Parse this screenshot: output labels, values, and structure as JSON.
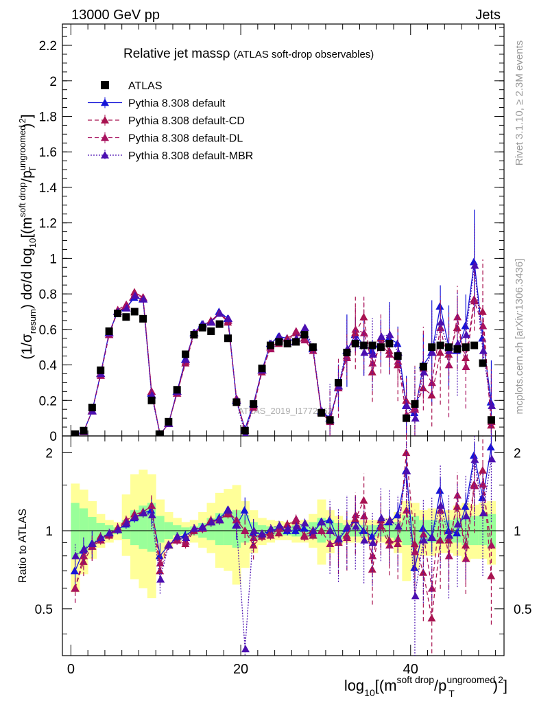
{
  "header": {
    "left": "13000 GeV pp",
    "right": "Jets"
  },
  "side_text": {
    "upper": "Rivet 3.1.10, ≥ 2.3M events",
    "lower": "mcplots.cern.ch [arXiv:1306.3436]"
  },
  "watermark": "ATLAS_2019_I1772062",
  "colors": {
    "atlas": "#000000",
    "default": "#1515d8",
    "cd": "#a8124f",
    "dl": "#a8125f",
    "mbr": "#4b0fb0",
    "band_outer": "#ffff99",
    "band_inner": "#99ff99"
  },
  "chart_data": [
    {
      "type": "line",
      "title": "Relative jet massρ",
      "title_note": "(ATLAS soft-drop observables)",
      "ylabel": {
        "pre": "(1/σ",
        "sub1": "resum",
        "mid": ") dσ/d log",
        "sub2": "10",
        "post1": "[(m",
        "sup1": "soft drop",
        "post2": "/p",
        "sup2": "ungroomed",
        "sub3": "T",
        "post3": ")",
        "sup3": "2",
        "post4": "]"
      },
      "xlim": [
        -1,
        51
      ],
      "ylim": [
        0,
        2.32
      ],
      "yticks": [
        0,
        0.2,
        0.4,
        0.6,
        0.8,
        1,
        1.2,
        1.4,
        1.6,
        1.8,
        2,
        2.2
      ],
      "ytick_labels": [
        "0",
        "0.2",
        "0.4",
        "0.6",
        "0.8",
        "1",
        "1.2",
        "1.4",
        "1.6",
        "1.8",
        "2",
        "2.2"
      ],
      "legend": [
        "ATLAS",
        "Pythia 8.308 default",
        "Pythia 8.308 default-CD",
        "Pythia 8.308 default-DL",
        "Pythia 8.308 default-MBR"
      ],
      "x": [
        0.5,
        1.5,
        2.5,
        3.5,
        4.5,
        5.5,
        6.5,
        7.5,
        8.5,
        9.5,
        10.5,
        11.5,
        12.5,
        13.5,
        14.5,
        15.5,
        16.5,
        17.5,
        18.5,
        19.5,
        20.5,
        21.5,
        22.5,
        23.5,
        24.5,
        25.5,
        26.5,
        27.5,
        28.5,
        29.5,
        30.5,
        31.5,
        32.5,
        33.5,
        34.5,
        35.5,
        36.5,
        37.5,
        38.5,
        39.5,
        40.5,
        41.5,
        42.5,
        43.5,
        44.5,
        45.5,
        46.5,
        47.5,
        48.5,
        49.5
      ],
      "series": [
        {
          "name": "ATLAS",
          "values": [
            0.01,
            0.03,
            0.16,
            0.37,
            0.59,
            0.69,
            0.67,
            0.7,
            0.66,
            0.2,
            0.01,
            0.08,
            0.26,
            0.46,
            0.57,
            0.61,
            0.59,
            0.63,
            0.55,
            0.19,
            0.03,
            0.18,
            0.38,
            0.51,
            0.53,
            0.52,
            0.53,
            0.57,
            0.5,
            0.13,
            0.09,
            0.3,
            0.47,
            0.52,
            0.51,
            0.51,
            0.5,
            0.52,
            0.45,
            0.1,
            0.18,
            0.39,
            0.5,
            0.51,
            0.5,
            0.49,
            0.5,
            0.51,
            0.41,
            0.09
          ]
        },
        {
          "name": "Pythia 8.308 default",
          "values": [
            0.007,
            0.025,
            0.14,
            0.35,
            0.58,
            0.7,
            0.72,
            0.78,
            0.77,
            0.24,
            0.008,
            0.07,
            0.25,
            0.43,
            0.58,
            0.63,
            0.64,
            0.7,
            0.66,
            0.2,
            0.04,
            0.18,
            0.37,
            0.52,
            0.56,
            0.55,
            0.53,
            0.58,
            0.49,
            0.14,
            0.1,
            0.27,
            0.48,
            0.57,
            0.51,
            0.48,
            0.52,
            0.55,
            0.52,
            0.17,
            0.13,
            0.4,
            0.47,
            0.73,
            0.5,
            0.48,
            0.62,
            0.98,
            0.55,
            0.19
          ]
        },
        {
          "name": "Pythia 8.308 default-CD",
          "values": [
            0.006,
            0.023,
            0.14,
            0.35,
            0.57,
            0.7,
            0.73,
            0.81,
            0.78,
            0.25,
            0.007,
            0.07,
            0.24,
            0.41,
            0.57,
            0.62,
            0.65,
            0.69,
            0.64,
            0.21,
            0.03,
            0.16,
            0.36,
            0.5,
            0.52,
            0.55,
            0.58,
            0.55,
            0.5,
            0.13,
            0.09,
            0.28,
            0.45,
            0.58,
            0.67,
            0.36,
            0.55,
            0.48,
            0.4,
            0.2,
            0.16,
            0.27,
            0.23,
            0.47,
            0.46,
            0.61,
            0.44,
            0.77,
            0.7,
            0.06
          ]
        },
        {
          "name": "Pythia 8.308 default-DL",
          "values": [
            0.006,
            0.024,
            0.14,
            0.34,
            0.57,
            0.71,
            0.74,
            0.8,
            0.78,
            0.25,
            0.008,
            0.07,
            0.24,
            0.42,
            0.58,
            0.62,
            0.64,
            0.69,
            0.65,
            0.21,
            0.03,
            0.17,
            0.37,
            0.49,
            0.54,
            0.53,
            0.59,
            0.54,
            0.48,
            0.13,
            0.08,
            0.27,
            0.44,
            0.6,
            0.58,
            0.41,
            0.52,
            0.46,
            0.42,
            0.12,
            0.15,
            0.38,
            0.3,
            0.61,
            0.4,
            0.67,
            0.39,
            0.76,
            0.62,
            0.08
          ]
        },
        {
          "name": "Pythia 8.308 default-MBR",
          "values": [
            0.008,
            0.025,
            0.14,
            0.35,
            0.58,
            0.7,
            0.72,
            0.79,
            0.77,
            0.23,
            0.009,
            0.07,
            0.25,
            0.43,
            0.58,
            0.63,
            0.64,
            0.69,
            0.66,
            0.2,
            0.01,
            0.18,
            0.37,
            0.52,
            0.56,
            0.53,
            0.55,
            0.61,
            0.5,
            0.14,
            0.09,
            0.28,
            0.49,
            0.54,
            0.47,
            0.46,
            0.56,
            0.57,
            0.47,
            0.17,
            0.1,
            0.36,
            0.47,
            0.64,
            0.48,
            0.52,
            0.57,
            0.96,
            0.48,
            0.17
          ]
        }
      ]
    },
    {
      "type": "line",
      "ylabel": "Ratio to ATLAS",
      "xlabel": {
        "pre": "log",
        "sub1": "10",
        "post1": "[(m",
        "sup1": "soft drop",
        "post2": "/p",
        "sup2": "ungroomed",
        "sub2": "T",
        "post3": ")",
        "sup3": "2",
        "post4": "]"
      },
      "xlim": [
        -1,
        51
      ],
      "ylim": [
        0.33,
        2.32
      ],
      "yticks": [
        0.5,
        1,
        2
      ],
      "ytick_labels": [
        "0.5",
        "1",
        "2"
      ],
      "xticks": [
        0,
        20,
        40
      ],
      "xtick_labels": [
        "0",
        "20",
        "40"
      ],
      "x": [
        0.5,
        1.5,
        2.5,
        3.5,
        4.5,
        5.5,
        6.5,
        7.5,
        8.5,
        9.5,
        10.5,
        11.5,
        12.5,
        13.5,
        14.5,
        15.5,
        16.5,
        17.5,
        18.5,
        19.5,
        20.5,
        21.5,
        22.5,
        23.5,
        24.5,
        25.5,
        26.5,
        27.5,
        28.5,
        29.5,
        30.5,
        31.5,
        32.5,
        33.5,
        34.5,
        35.5,
        36.5,
        37.5,
        38.5,
        39.5,
        40.5,
        41.5,
        42.5,
        43.5,
        44.5,
        45.5,
        46.5,
        47.5,
        48.5,
        49.5
      ],
      "band_inner": [
        [
          0.78,
          1.28
        ],
        [
          0.83,
          1.22
        ],
        [
          0.88,
          1.13
        ],
        [
          0.93,
          1.07
        ],
        [
          0.96,
          1.05
        ],
        [
          0.97,
          1.03
        ],
        [
          0.93,
          1.1
        ],
        [
          0.88,
          1.2
        ],
        [
          0.85,
          1.25
        ],
        [
          0.83,
          1.28
        ],
        [
          0.9,
          1.14
        ],
        [
          0.93,
          1.08
        ],
        [
          0.96,
          1.05
        ],
        [
          0.97,
          1.03
        ],
        [
          0.96,
          1.04
        ],
        [
          0.94,
          1.07
        ],
        [
          0.92,
          1.12
        ],
        [
          0.88,
          1.17
        ],
        [
          0.88,
          1.18
        ],
        [
          0.86,
          1.2
        ],
        [
          0.9,
          1.15
        ],
        [
          0.92,
          1.08
        ],
        [
          0.95,
          1.05
        ],
        [
          0.96,
          1.04
        ],
        [
          0.96,
          1.04
        ],
        [
          0.96,
          1.04
        ],
        [
          0.95,
          1.05
        ],
        [
          0.95,
          1.06
        ],
        [
          0.93,
          1.08
        ],
        [
          0.9,
          1.12
        ],
        [
          0.92,
          1.1
        ],
        [
          0.93,
          1.07
        ],
        [
          0.95,
          1.05
        ],
        [
          0.95,
          1.05
        ],
        [
          0.95,
          1.05
        ],
        [
          0.95,
          1.05
        ],
        [
          0.95,
          1.05
        ],
        [
          0.94,
          1.06
        ],
        [
          0.92,
          1.08
        ],
        [
          0.88,
          1.15
        ],
        [
          0.88,
          1.14
        ],
        [
          0.9,
          1.1
        ],
        [
          0.9,
          1.1
        ],
        [
          0.9,
          1.1
        ],
        [
          0.9,
          1.1
        ],
        [
          0.9,
          1.12
        ],
        [
          0.88,
          1.14
        ],
        [
          0.88,
          1.14
        ],
        [
          0.88,
          1.15
        ],
        [
          0.86,
          1.16
        ]
      ],
      "band_outer": [
        [
          0.58,
          1.52
        ],
        [
          0.68,
          1.44
        ],
        [
          0.78,
          1.3
        ],
        [
          0.86,
          1.16
        ],
        [
          0.9,
          1.1
        ],
        [
          0.92,
          1.08
        ],
        [
          0.8,
          1.38
        ],
        [
          0.65,
          1.65
        ],
        [
          0.6,
          1.72
        ],
        [
          0.55,
          1.65
        ],
        [
          0.78,
          1.32
        ],
        [
          0.85,
          1.18
        ],
        [
          0.9,
          1.12
        ],
        [
          0.93,
          1.08
        ],
        [
          0.9,
          1.1
        ],
        [
          0.86,
          1.18
        ],
        [
          0.82,
          1.28
        ],
        [
          0.72,
          1.4
        ],
        [
          0.7,
          1.45
        ],
        [
          0.62,
          1.5
        ],
        [
          0.72,
          1.3
        ],
        [
          0.82,
          1.2
        ],
        [
          0.88,
          1.12
        ],
        [
          0.9,
          1.1
        ],
        [
          0.92,
          1.09
        ],
        [
          0.92,
          1.08
        ],
        [
          0.9,
          1.09
        ],
        [
          0.9,
          1.1
        ],
        [
          0.86,
          1.16
        ],
        [
          0.74,
          1.32
        ],
        [
          0.82,
          1.2
        ],
        [
          0.88,
          1.14
        ],
        [
          0.9,
          1.1
        ],
        [
          0.9,
          1.1
        ],
        [
          0.9,
          1.1
        ],
        [
          0.9,
          1.1
        ],
        [
          0.9,
          1.1
        ],
        [
          0.88,
          1.12
        ],
        [
          0.82,
          1.18
        ],
        [
          0.64,
          1.3
        ],
        [
          0.7,
          1.28
        ],
        [
          0.8,
          1.2
        ],
        [
          0.8,
          1.22
        ],
        [
          0.82,
          1.2
        ],
        [
          0.82,
          1.2
        ],
        [
          0.8,
          1.25
        ],
        [
          0.76,
          1.28
        ],
        [
          0.78,
          1.26
        ],
        [
          0.78,
          1.28
        ],
        [
          0.74,
          1.3
        ]
      ],
      "series": [
        {
          "name": "Pythia 8.308 default",
          "values": [
            0.7,
            0.84,
            0.89,
            0.93,
            0.97,
            1.01,
            1.06,
            1.12,
            1.17,
            1.2,
            0.8,
            0.88,
            0.94,
            0.96,
            1.01,
            1.03,
            1.08,
            1.12,
            1.2,
            1.05,
            1.2,
            0.98,
            0.97,
            1.0,
            1.02,
            1.0,
            1.0,
            1.02,
            0.98,
            1.08,
            1.1,
            0.92,
            1.02,
            1.1,
            1.0,
            0.95,
            1.04,
            1.08,
            1.15,
            1.7,
            0.72,
            1.02,
            0.94,
            1.43,
            1.0,
            0.98,
            1.24,
            1.95,
            1.34,
            2.1
          ]
        },
        {
          "name": "Pythia 8.308 default-CD",
          "values": [
            0.6,
            0.76,
            0.87,
            0.95,
            0.96,
            1.01,
            1.09,
            1.16,
            1.18,
            1.25,
            0.7,
            0.88,
            0.92,
            0.89,
            1.0,
            1.02,
            1.1,
            1.1,
            1.16,
            1.1,
            1.0,
            0.88,
            0.95,
            0.98,
            0.98,
            1.06,
            1.09,
            0.96,
            1.0,
            1.0,
            1.0,
            0.93,
            0.96,
            1.11,
            1.31,
            0.71,
            1.1,
            0.92,
            0.89,
            2.0,
            0.89,
            0.69,
            0.46,
            0.92,
            0.92,
            1.24,
            0.88,
            1.51,
            1.71,
            0.67
          ]
        },
        {
          "name": "Pythia 8.308 default-DL",
          "values": [
            0.6,
            0.8,
            0.87,
            0.92,
            0.97,
            1.03,
            1.1,
            1.14,
            1.18,
            1.25,
            0.75,
            0.88,
            0.92,
            0.91,
            1.02,
            1.02,
            1.08,
            1.1,
            1.18,
            1.1,
            1.0,
            0.94,
            0.97,
            0.96,
            1.02,
            1.02,
            1.11,
            0.95,
            0.96,
            1.0,
            0.89,
            0.9,
            0.94,
            1.15,
            1.14,
            0.8,
            1.04,
            0.88,
            0.93,
            1.2,
            0.83,
            0.97,
            0.6,
            1.2,
            0.8,
            1.37,
            0.78,
            1.49,
            1.51,
            0.88
          ]
        },
        {
          "name": "Pythia 8.308 default-MBR",
          "values": [
            0.8,
            0.85,
            0.89,
            0.94,
            0.98,
            1.01,
            1.07,
            1.13,
            1.17,
            1.15,
            0.65,
            0.88,
            0.95,
            0.94,
            1.02,
            1.03,
            1.08,
            1.1,
            1.2,
            1.05,
            0.35,
            1.0,
            0.97,
            1.02,
            1.05,
            1.02,
            1.04,
            1.07,
            1.0,
            1.08,
            1.0,
            0.93,
            1.04,
            1.04,
            0.92,
            0.9,
            1.12,
            1.1,
            1.04,
            1.7,
            0.56,
            0.92,
            0.94,
            1.25,
            0.96,
            1.06,
            1.14,
            1.88,
            1.17,
            1.89
          ]
        }
      ]
    }
  ]
}
